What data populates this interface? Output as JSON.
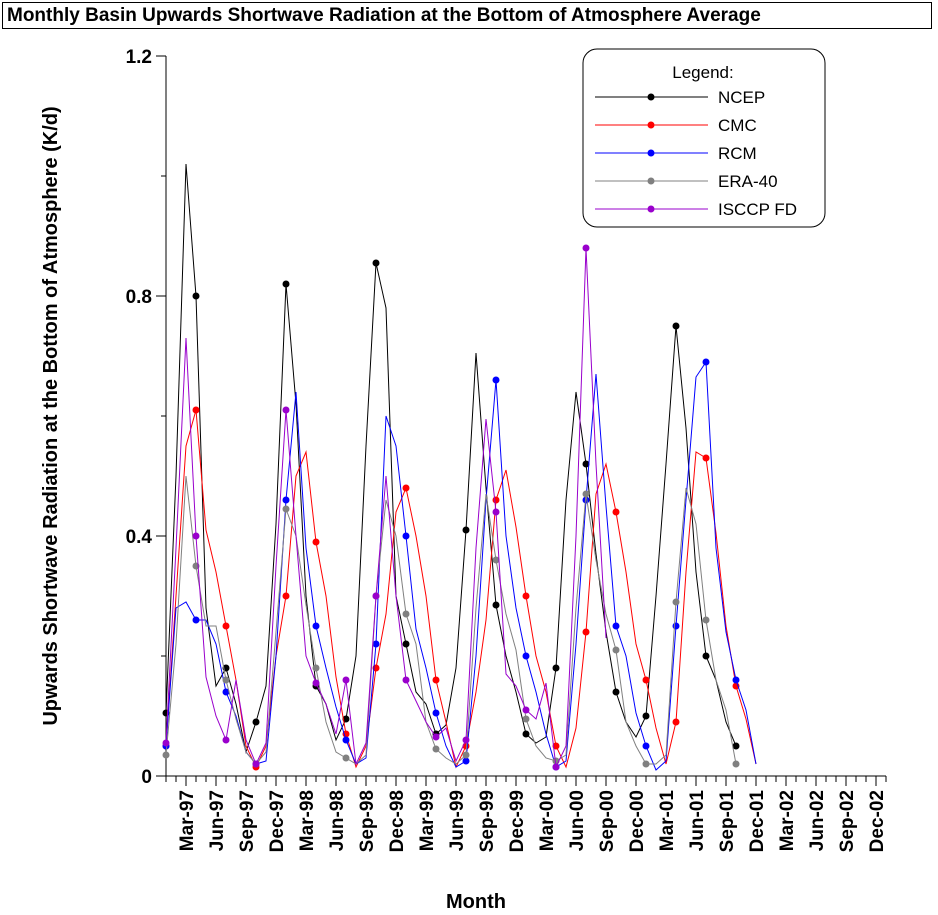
{
  "chart_data": {
    "type": "line",
    "title": "Monthly Basin Upwards Shortwave Radiation at the Bottom of Atmosphere Average",
    "xlabel": "Month",
    "ylabel": "Upwards Shortwave Radiation at the Bottom of Atmosphere (K/d)",
    "ylim": [
      0,
      1.2
    ],
    "yticks": [
      "0",
      "0.4",
      "0.8",
      "1.2"
    ],
    "x_start": "Jan-97",
    "x_tick_labels": [
      "Mar-97",
      "Jun-97",
      "Sep-97",
      "Dec-97",
      "Mar-98",
      "Jun-98",
      "Sep-98",
      "Dec-98",
      "Mar-99",
      "Jun-99",
      "Sep-99",
      "Dec-99",
      "Mar-00",
      "Jun-00",
      "Sep-00",
      "Dec-00",
      "Mar-01",
      "Jun-01",
      "Sep-01",
      "Dec-01",
      "Mar-02",
      "Jun-02",
      "Sep-02",
      "Dec-02"
    ],
    "legend": {
      "title": "Legend:",
      "position": "top-right"
    },
    "series": [
      {
        "name": "NCEP",
        "color": "#000000",
        "values": [
          0.105,
          0.5,
          1.02,
          0.8,
          0.28,
          0.15,
          0.18,
          0.12,
          0.04,
          0.09,
          0.15,
          0.42,
          0.82,
          0.62,
          0.3,
          0.15,
          0.12,
          0.06,
          0.095,
          0.2,
          0.55,
          0.855,
          0.78,
          0.3,
          0.22,
          0.14,
          0.12,
          0.07,
          0.085,
          0.18,
          0.41,
          0.705,
          0.48,
          0.285,
          0.2,
          0.14,
          0.07,
          0.055,
          0.065,
          0.18,
          0.46,
          0.64,
          0.52,
          0.37,
          0.24,
          0.14,
          0.09,
          0.065,
          0.1,
          0.3,
          0.52,
          0.75,
          0.58,
          0.34,
          0.2,
          0.16,
          0.09,
          0.05
        ]
      },
      {
        "name": "CMC",
        "color": "#ff0000",
        "values": [
          0.05,
          0.3,
          0.55,
          0.61,
          0.41,
          0.34,
          0.25,
          0.16,
          0.05,
          0.015,
          0.05,
          0.2,
          0.3,
          0.5,
          0.54,
          0.39,
          0.3,
          0.165,
          0.07,
          0.015,
          0.05,
          0.18,
          0.27,
          0.44,
          0.48,
          0.4,
          0.3,
          0.16,
          0.09,
          0.015,
          0.05,
          0.14,
          0.26,
          0.46,
          0.51,
          0.415,
          0.3,
          0.2,
          0.14,
          0.05,
          0.015,
          0.08,
          0.24,
          0.47,
          0.52,
          0.44,
          0.34,
          0.22,
          0.16,
          0.08,
          0.02,
          0.09,
          0.34,
          0.54,
          0.53,
          0.405,
          0.25,
          0.15,
          0.095,
          0.02
        ]
      },
      {
        "name": "RCM",
        "color": "#0000ff",
        "values": [
          0.05,
          0.28,
          0.29,
          0.26,
          0.26,
          0.22,
          0.14,
          0.1,
          0.04,
          0.02,
          0.025,
          0.2,
          0.46,
          0.64,
          0.38,
          0.25,
          0.18,
          0.115,
          0.06,
          0.02,
          0.03,
          0.22,
          0.6,
          0.55,
          0.4,
          0.245,
          0.18,
          0.105,
          0.05,
          0.015,
          0.025,
          0.2,
          0.46,
          0.66,
          0.4,
          0.28,
          0.2,
          0.14,
          0.07,
          0.015,
          0.025,
          0.22,
          0.46,
          0.67,
          0.45,
          0.25,
          0.2,
          0.105,
          0.05,
          0.01,
          0.025,
          0.25,
          0.46,
          0.665,
          0.69,
          0.38,
          0.24,
          0.16,
          0.11,
          0.02
        ]
      },
      {
        "name": "ERA-40",
        "color": "#808080",
        "values": [
          0.035,
          0.22,
          0.5,
          0.35,
          0.25,
          0.25,
          0.16,
          0.095,
          0.04,
          0.02,
          0.04,
          0.24,
          0.445,
          0.4,
          0.285,
          0.18,
          0.09,
          0.04,
          0.03,
          0.02,
          0.035,
          0.3,
          0.46,
          0.4,
          0.27,
          0.22,
          0.09,
          0.045,
          0.03,
          0.02,
          0.035,
          0.28,
          0.47,
          0.36,
          0.27,
          0.21,
          0.095,
          0.05,
          0.03,
          0.025,
          0.035,
          0.28,
          0.47,
          0.36,
          0.27,
          0.21,
          0.09,
          0.05,
          0.02,
          0.02,
          0.035,
          0.29,
          0.48,
          0.42,
          0.26,
          0.16,
          0.11,
          0.02
        ]
      },
      {
        "name": "ISCCP FD",
        "color": "#9900cc",
        "values": [
          0.055,
          0.38,
          0.73,
          0.4,
          0.165,
          0.1,
          0.06,
          0.16,
          0.06,
          0.02,
          0.055,
          0.35,
          0.61,
          0.4,
          0.2,
          0.155,
          0.12,
          0.07,
          0.16,
          0.02,
          0.055,
          0.3,
          0.5,
          0.3,
          0.16,
          0.125,
          0.09,
          0.065,
          0.08,
          0.025,
          0.06,
          0.38,
          0.595,
          0.44,
          0.17,
          0.15,
          0.11,
          0.095,
          0.155,
          0.015,
          0.05,
          0.4,
          0.88,
          0.52,
          0.23,
          null,
          null,
          null,
          null,
          null,
          null,
          null,
          null,
          null,
          null,
          null,
          null,
          null,
          null,
          null
        ]
      }
    ]
  }
}
